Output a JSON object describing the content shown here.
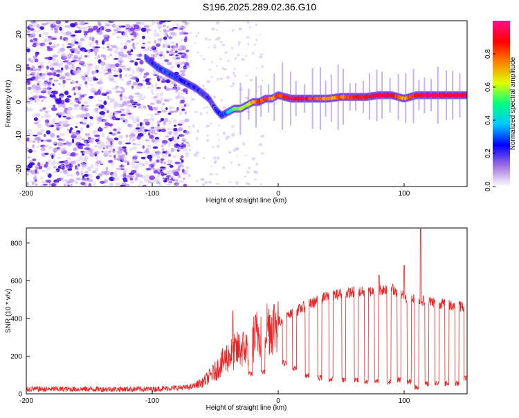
{
  "title": "S196.2025.289.02.36.G10",
  "chart_data": [
    {
      "type": "heatmap",
      "title": "S196.2025.289.02.36.G10",
      "xlabel": "Height of straight line (km)",
      "ylabel": "Frequency (Hz)",
      "xlim": [
        -200,
        150
      ],
      "ylim": [
        -25,
        24
      ],
      "x_ticks": [
        -200,
        -100,
        0,
        100
      ],
      "x_tick_labels": [
        "-200",
        "-100",
        "0",
        "100"
      ],
      "y_ticks": [
        -20,
        -10,
        0,
        10,
        20
      ],
      "y_tick_labels": [
        "-20",
        "-10",
        "0",
        "10",
        "20"
      ],
      "noise_region_x": [
        -200,
        -72
      ],
      "ridge": {
        "x": [
          -105,
          -95,
          -85,
          -75,
          -65,
          -55,
          -50,
          -45,
          -40,
          -35,
          -30,
          -25,
          -20,
          -15,
          -10,
          -5,
          0,
          10,
          20,
          30,
          40,
          50,
          60,
          70,
          80,
          90,
          100,
          110,
          120,
          130,
          140,
          150
        ],
        "y": [
          13,
          10,
          8,
          6,
          4,
          1,
          -2,
          -4,
          -3,
          -2,
          -2,
          -1,
          0,
          0,
          1,
          1,
          2,
          1,
          1,
          1,
          1,
          1.5,
          1.5,
          1.5,
          2,
          2,
          1,
          2,
          2,
          2,
          2,
          2
        ],
        "amplitude": [
          0.25,
          0.25,
          0.25,
          0.22,
          0.22,
          0.2,
          0.2,
          0.25,
          0.35,
          0.5,
          0.6,
          0.6,
          0.7,
          0.8,
          0.85,
          0.7,
          0.8,
          0.95,
          0.9,
          0.8,
          0.7,
          0.75,
          0.85,
          0.9,
          0.95,
          0.95,
          0.7,
          0.9,
          0.95,
          0.9,
          0.95,
          0.9
        ]
      },
      "colorbar": {
        "label": "Normalized spectral amplitude",
        "min": 0.0,
        "max": 1.0,
        "ticks": [
          0.0,
          0.2,
          0.4,
          0.6,
          0.8
        ],
        "tick_labels": [
          "0.0",
          "0.2",
          "0.4",
          "0.6",
          "0.8"
        ],
        "colors": [
          "#ffffff",
          "#a070e0",
          "#0000ff",
          "#00c8ff",
          "#00ff80",
          "#e0ff00",
          "#ff8000",
          "#ff0000",
          "#ff1090"
        ]
      }
    },
    {
      "type": "line",
      "xlabel": "Height of straight line (km)",
      "ylabel": "SNR (10 * v/v)",
      "xlim": [
        -200,
        150
      ],
      "ylim": [
        0,
        880
      ],
      "x_ticks": [
        -200,
        -100,
        0,
        100
      ],
      "x_tick_labels": [
        "-200",
        "-100",
        "0",
        "100"
      ],
      "y_ticks": [
        0,
        200,
        400,
        600,
        800
      ],
      "y_tick_labels": [
        "0",
        "200",
        "400",
        "600",
        "800"
      ],
      "color": "#ee2222",
      "series": [
        {
          "name": "SNR",
          "envelope_x": [
            -200,
            -150,
            -100,
            -70,
            -60,
            -50,
            -45,
            -40,
            -35,
            -30,
            -25,
            -20,
            -15,
            -10,
            -5,
            0,
            10,
            20,
            30,
            40,
            50,
            60,
            70,
            80,
            90,
            100,
            105,
            110,
            120,
            130,
            140,
            150
          ],
          "envelope_y": [
            25,
            25,
            25,
            35,
            60,
            120,
            160,
            200,
            220,
            240,
            240,
            290,
            330,
            360,
            360,
            380,
            420,
            460,
            490,
            520,
            530,
            540,
            540,
            550,
            560,
            520,
            500,
            500,
            490,
            480,
            470,
            460
          ],
          "dip_x": [
            -22,
            -12,
            5,
            13,
            23,
            33,
            42,
            52,
            62,
            70,
            78,
            88,
            96,
            104,
            110,
            118,
            126,
            134,
            142,
            149
          ],
          "dip_y": [
            90,
            100,
            150,
            120,
            80,
            70,
            60,
            60,
            60,
            50,
            50,
            50,
            60,
            50,
            20,
            40,
            40,
            40,
            40,
            70
          ],
          "spikes": [
            {
              "x": -36,
              "y": 440
            },
            {
              "x": 113,
              "y": 875
            },
            {
              "x": 100,
              "y": 680
            },
            {
              "x": 80,
              "y": 630
            }
          ]
        }
      ]
    }
  ]
}
